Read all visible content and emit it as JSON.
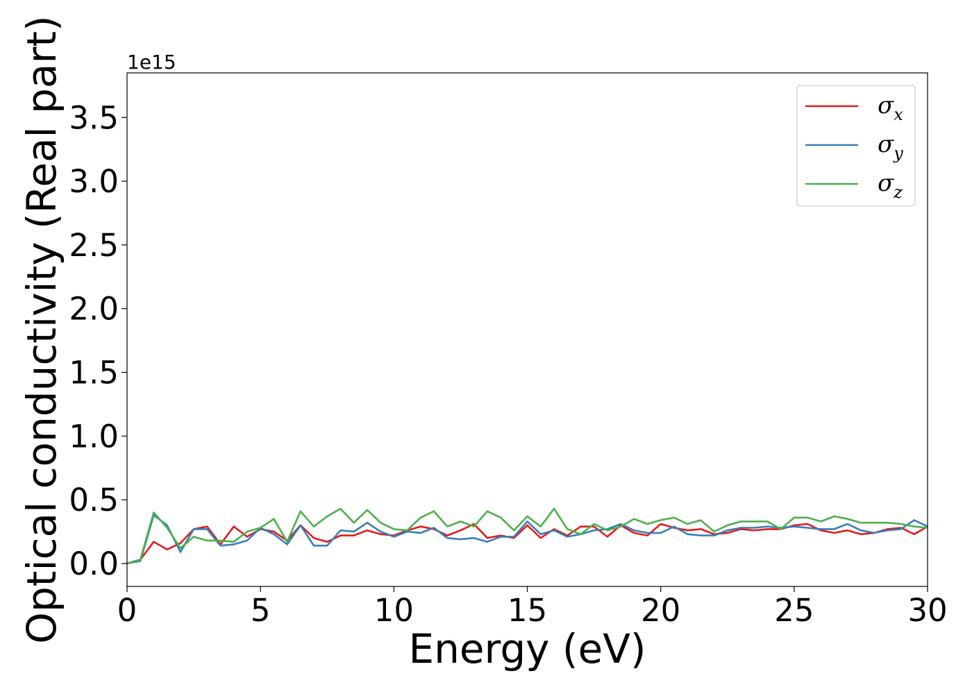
{
  "chart_data": {
    "type": "line",
    "xlabel": "Energy (eV)",
    "ylabel": "Optical conductivity (Real part)",
    "y_offset_label": "1e15",
    "xlim": [
      0,
      30
    ],
    "ylim": [
      -0.18,
      3.85
    ],
    "x_ticks": [
      0,
      5,
      10,
      15,
      20,
      25,
      30
    ],
    "x_tick_labels": [
      "0",
      "5",
      "10",
      "15",
      "20",
      "25",
      "30"
    ],
    "y_ticks": [
      0.0,
      0.5,
      1.0,
      1.5,
      2.0,
      2.5,
      3.0,
      3.5
    ],
    "y_tick_labels": [
      "0.0",
      "0.5",
      "1.0",
      "1.5",
      "2.0",
      "2.5",
      "3.0",
      "3.5"
    ],
    "grid": false,
    "legend_position": "top-right",
    "x": [
      0,
      0.5,
      1,
      1.5,
      2,
      2.5,
      3,
      3.5,
      4,
      4.5,
      5,
      5.5,
      6,
      6.5,
      7,
      7.5,
      8,
      8.5,
      9,
      9.5,
      10,
      10.5,
      11,
      11.5,
      12,
      12.5,
      13,
      13.5,
      14,
      14.5,
      15,
      15.5,
      16,
      16.5,
      17,
      17.5,
      18,
      18.5,
      19,
      19.5,
      20,
      20.5,
      21,
      21.5,
      22,
      22.5,
      23,
      23.5,
      24,
      24.5,
      25,
      25.5,
      26,
      26.5,
      27,
      27.5,
      28,
      28.5,
      29,
      29.5,
      30
    ],
    "series": [
      {
        "name": "σ",
        "subscript": "x",
        "color": "#e41a1c",
        "values": [
          0.0,
          0.03,
          0.17,
          0.11,
          0.16,
          0.27,
          0.29,
          0.15,
          0.29,
          0.21,
          0.27,
          0.25,
          0.18,
          0.3,
          0.2,
          0.17,
          0.22,
          0.22,
          0.26,
          0.23,
          0.22,
          0.26,
          0.29,
          0.27,
          0.22,
          0.26,
          0.31,
          0.2,
          0.22,
          0.2,
          0.3,
          0.2,
          0.27,
          0.22,
          0.29,
          0.29,
          0.21,
          0.3,
          0.24,
          0.22,
          0.31,
          0.28,
          0.26,
          0.27,
          0.23,
          0.24,
          0.27,
          0.26,
          0.27,
          0.27,
          0.3,
          0.31,
          0.26,
          0.24,
          0.26,
          0.23,
          0.24,
          0.27,
          0.28,
          0.23,
          0.29
        ]
      },
      {
        "name": "σ",
        "subscript": "y",
        "color": "#377eb8",
        "values": [
          0.0,
          0.02,
          0.38,
          0.3,
          0.09,
          0.27,
          0.27,
          0.14,
          0.15,
          0.18,
          0.28,
          0.23,
          0.15,
          0.3,
          0.14,
          0.14,
          0.26,
          0.25,
          0.32,
          0.25,
          0.21,
          0.25,
          0.24,
          0.28,
          0.2,
          0.19,
          0.2,
          0.17,
          0.21,
          0.21,
          0.33,
          0.23,
          0.26,
          0.21,
          0.23,
          0.26,
          0.27,
          0.31,
          0.26,
          0.24,
          0.24,
          0.29,
          0.23,
          0.22,
          0.22,
          0.26,
          0.28,
          0.28,
          0.29,
          0.28,
          0.29,
          0.28,
          0.27,
          0.27,
          0.31,
          0.26,
          0.24,
          0.26,
          0.27,
          0.34,
          0.29
        ]
      },
      {
        "name": "σ",
        "subscript": "z",
        "color": "#4daf4a",
        "values": [
          0.0,
          0.03,
          0.4,
          0.28,
          0.12,
          0.21,
          0.18,
          0.18,
          0.17,
          0.25,
          0.28,
          0.35,
          0.17,
          0.41,
          0.29,
          0.37,
          0.43,
          0.32,
          0.42,
          0.32,
          0.27,
          0.26,
          0.36,
          0.41,
          0.29,
          0.33,
          0.29,
          0.41,
          0.36,
          0.26,
          0.37,
          0.29,
          0.43,
          0.27,
          0.23,
          0.31,
          0.26,
          0.29,
          0.35,
          0.31,
          0.34,
          0.36,
          0.31,
          0.34,
          0.25,
          0.3,
          0.33,
          0.33,
          0.33,
          0.27,
          0.36,
          0.36,
          0.33,
          0.37,
          0.35,
          0.32,
          0.32,
          0.32,
          0.31,
          0.29,
          0.28
        ]
      }
    ]
  }
}
